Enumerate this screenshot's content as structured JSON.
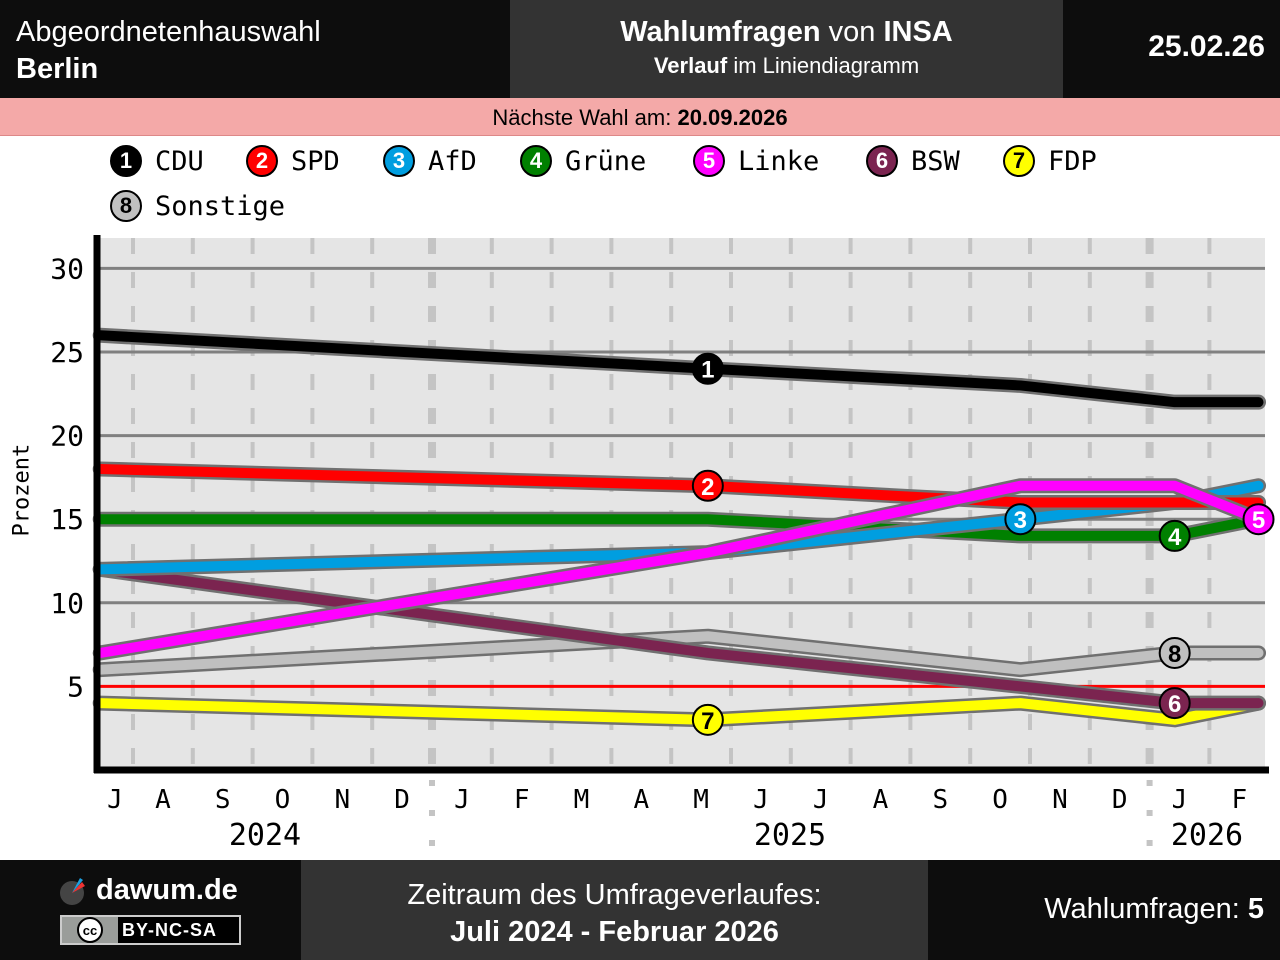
{
  "header": {
    "title_line1": "Abgeordnetenhauswahl",
    "title_line2": "Berlin",
    "center_bold": "Wahlumfragen",
    "center_mid": " von ",
    "center_inst": "INSA",
    "sub_bold": "Verlauf",
    "sub_rest": " im Liniendiagramm",
    "date": "25.02.26"
  },
  "next_election": {
    "label": "Nächste Wahl am: ",
    "date": "20.09.2026"
  },
  "footer": {
    "brand": "dawum.de",
    "license": "BY-NC-SA",
    "license_icon": "cc",
    "period_label": "Zeitraum des Umfrageverlaufes:",
    "period": "Juli 2024 - Februar 2026",
    "polls_label": "Wahlumfragen: ",
    "polls_count": "5"
  },
  "chart_data": {
    "type": "line",
    "ylabel": "Prozent",
    "ylim": [
      0,
      32
    ],
    "yticks": [
      5,
      10,
      15,
      20,
      25,
      30
    ],
    "threshold": 5,
    "threshold_color": "#ff0000",
    "x_dates": [
      "2024-07-15",
      "2025-05-20",
      "2025-10-27",
      "2026-01-14",
      "2026-02-24"
    ],
    "month_labels": [
      "J",
      "A",
      "S",
      "O",
      "N",
      "D",
      "J",
      "F",
      "M",
      "A",
      "M",
      "J",
      "J",
      "A",
      "S",
      "O",
      "N",
      "D",
      "J",
      "F"
    ],
    "year_labels": [
      "2024",
      "2025",
      "2026"
    ],
    "series": [
      {
        "num": "1",
        "name": "CDU",
        "color": "#000000",
        "text": "#ffffff",
        "values": [
          26,
          24,
          23,
          22,
          22
        ],
        "marker_at": 1
      },
      {
        "num": "2",
        "name": "SPD",
        "color": "#ff0000",
        "text": "#ffffff",
        "values": [
          18,
          17,
          16,
          16,
          16
        ],
        "marker_at": 1
      },
      {
        "num": "3",
        "name": "AfD",
        "color": "#009ee0",
        "text": "#ffffff",
        "values": [
          12,
          13,
          15,
          16,
          17
        ],
        "marker_at": 2
      },
      {
        "num": "4",
        "name": "Grüne",
        "color": "#008000",
        "text": "#ffffff",
        "values": [
          15,
          15,
          14,
          14,
          15
        ],
        "marker_at": 3
      },
      {
        "num": "5",
        "name": "Linke",
        "color": "#ff00ff",
        "text": "#ffffff",
        "values": [
          7,
          13,
          17,
          17,
          15
        ],
        "marker_at": 4
      },
      {
        "num": "6",
        "name": "BSW",
        "color": "#7b2450",
        "text": "#ffffff",
        "values": [
          12,
          7,
          5,
          4,
          4
        ],
        "marker_at": 3
      },
      {
        "num": "7",
        "name": "FDP",
        "color": "#ffff00",
        "text": "#000000",
        "values": [
          4,
          3,
          4,
          3,
          4
        ],
        "marker_at": 1
      },
      {
        "num": "8",
        "name": "Sonstige",
        "color": "#c0c0c0",
        "text": "#000000",
        "values": [
          6,
          8,
          6,
          7,
          7
        ],
        "marker_at": 3
      }
    ]
  }
}
